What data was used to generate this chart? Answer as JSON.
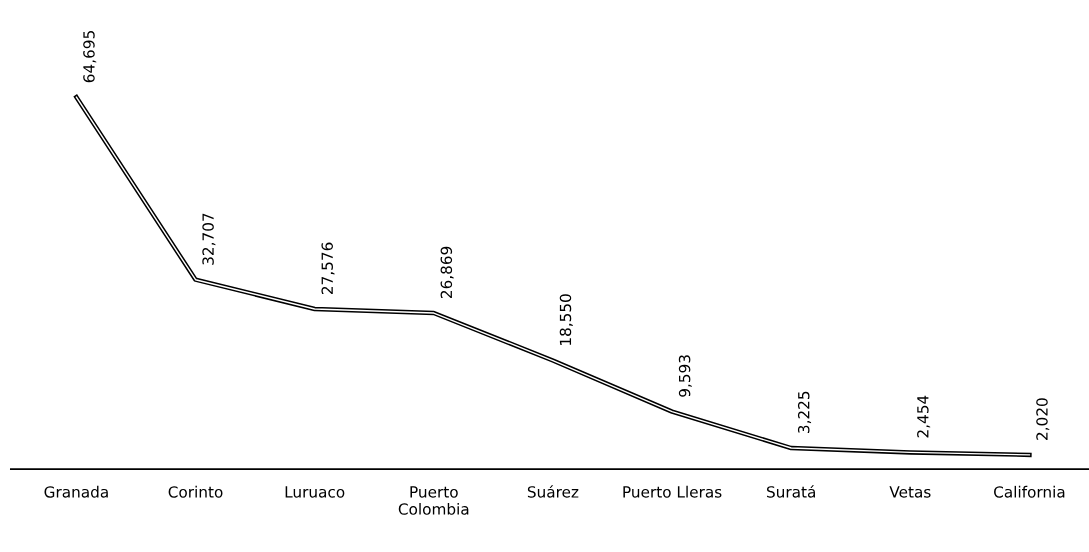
{
  "chart_data": {
    "type": "line",
    "categories": [
      "Granada",
      "Corinto",
      "Luruaco",
      "Puerto\nColombia",
      "Suárez",
      "Puerto Lleras",
      "Suratá",
      "Vetas",
      "California"
    ],
    "values": [
      64695,
      32707,
      27576,
      26869,
      18550,
      9593,
      3225,
      2454,
      2020
    ],
    "value_labels": [
      "64,695",
      "32,707",
      "27,576",
      "26,869",
      "18,550",
      "9,593",
      "3,225",
      "2,454",
      "2,020"
    ],
    "color": "#000000",
    "tick_labels": "x",
    "grid": false,
    "legend": false,
    "marker": "none",
    "line_style": "solid"
  }
}
